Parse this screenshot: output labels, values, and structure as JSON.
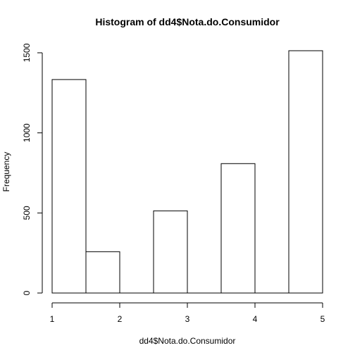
{
  "chart_data": {
    "type": "bar",
    "subtype": "histogram",
    "title": "Histogram of dd4$Nota.do.Consumidor",
    "xlabel": "dd4$Nota.do.Consumidor",
    "ylabel": "Frequency",
    "bins": [
      {
        "x0": 1.0,
        "x1": 1.5,
        "value": 1333
      },
      {
        "x0": 1.5,
        "x1": 2.0,
        "value": 258
      },
      {
        "x0": 2.0,
        "x1": 2.5,
        "value": 0
      },
      {
        "x0": 2.5,
        "x1": 3.0,
        "value": 513
      },
      {
        "x0": 3.0,
        "x1": 3.5,
        "value": 0
      },
      {
        "x0": 3.5,
        "x1": 4.0,
        "value": 808
      },
      {
        "x0": 4.0,
        "x1": 4.5,
        "value": 0
      },
      {
        "x0": 4.5,
        "x1": 5.0,
        "value": 1513
      }
    ],
    "xlim": [
      1,
      5
    ],
    "ylim": [
      0,
      1513
    ],
    "x_ticks": [
      1,
      2,
      3,
      4,
      5
    ],
    "y_ticks": [
      0,
      500,
      1000,
      1500
    ],
    "bar_fill": "#ffffff",
    "bar_stroke": "#000000",
    "grid": false,
    "legend": "none"
  }
}
